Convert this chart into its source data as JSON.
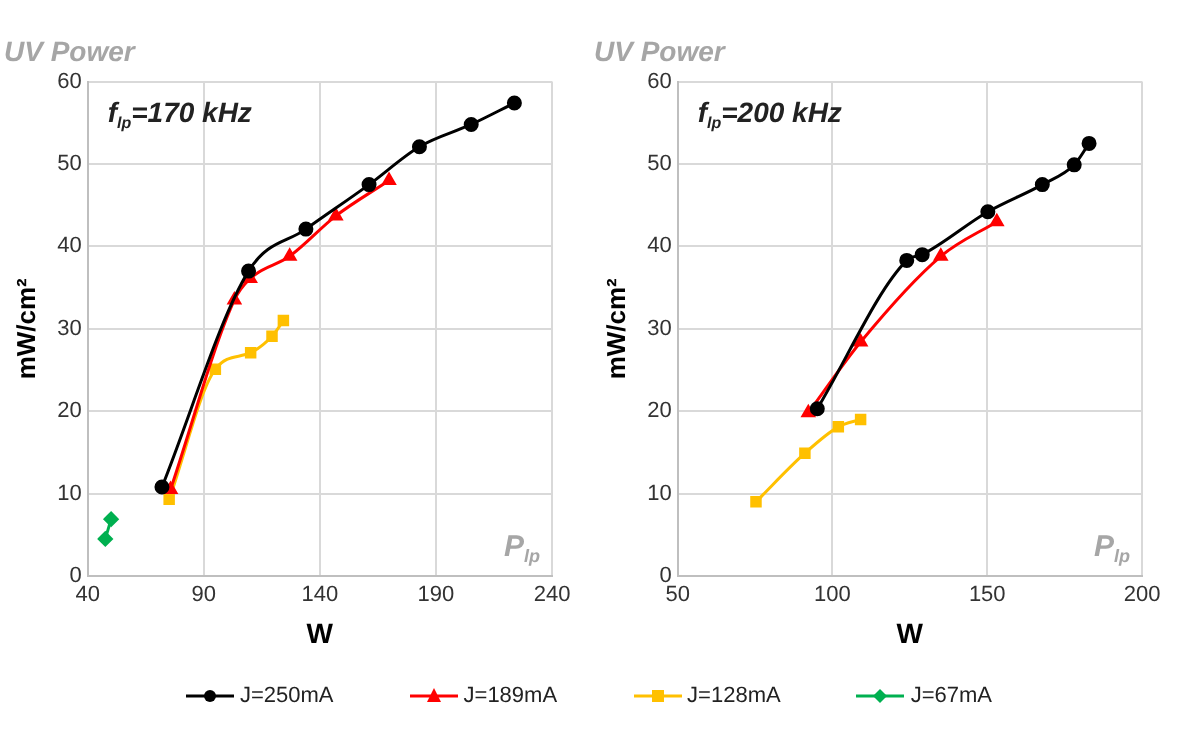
{
  "chart_data": [
    {
      "type": "line",
      "title": "UV Power",
      "xlabel": "W",
      "ylabel": "mW/cm²",
      "annotations": [
        "f$_{lp}$=170 kHz",
        "P$_{lp}$"
      ],
      "xlim": [
        40,
        240
      ],
      "xticks": [
        40,
        90,
        140,
        190,
        240
      ],
      "ylim": [
        0,
        60
      ],
      "yticks": [
        0,
        10,
        20,
        30,
        40,
        50,
        60
      ],
      "grid": true,
      "legend": "bottom",
      "line_style": "solid",
      "series": [
        {
          "name": "J=250mA",
          "color": "#000000",
          "marker": "circle",
          "x": [
            72,
            109.3,
            134,
            161.2,
            182.9,
            205.2,
            223.8
          ],
          "values": [
            10.8,
            37.0,
            42.1,
            47.5,
            52.1,
            54.8,
            57.4
          ]
        },
        {
          "name": "J=189mA",
          "color": "#ff0000",
          "marker": "triangle",
          "x": [
            75.7,
            103.2,
            110,
            127,
            146.9,
            169.8
          ],
          "values": [
            10.5,
            33.5,
            36.1,
            38.8,
            43.7,
            48.0
          ]
        },
        {
          "name": "J=128mA",
          "color": "#ffc000",
          "marker": "square",
          "x": [
            75.1,
            95,
            110.2,
            119.4,
            124.3
          ],
          "values": [
            9.3,
            25.1,
            27.1,
            29.1,
            31.0
          ]
        },
        {
          "name": "J=67mA",
          "color": "#00b050",
          "marker": "diamond",
          "x": [
            47.6,
            50.1
          ],
          "values": [
            4.5,
            6.9
          ]
        }
      ]
    },
    {
      "type": "line",
      "title": "UV Power",
      "xlabel": "W",
      "ylabel": "mW/cm²",
      "annotations": [
        "f$_{lp}$=200 kHz",
        "P$_{lp}$"
      ],
      "xlim": [
        50,
        200
      ],
      "xticks": [
        50,
        100,
        150,
        200
      ],
      "ylim": [
        0,
        60
      ],
      "yticks": [
        0,
        10,
        20,
        30,
        40,
        50,
        60
      ],
      "grid": true,
      "legend": "bottom",
      "line_style": "solid",
      "series": [
        {
          "color": "#000000",
          "marker": "circle",
          "x": [
            95.1,
            124,
            129,
            150.2,
            167.8,
            178.1,
            182.9
          ],
          "values": [
            20.3,
            38.3,
            39.0,
            44.2,
            47.5,
            49.9,
            52.5
          ]
        },
        {
          "color": "#ff0000",
          "marker": "triangle",
          "x": [
            92.2,
            109.1,
            135,
            153.1
          ],
          "values": [
            19.8,
            28.4,
            38.8,
            43.0
          ]
        },
        {
          "color": "#ffc000",
          "marker": "square",
          "x": [
            75.3,
            91.1,
            101.9,
            109.1
          ],
          "values": [
            9.0,
            14.9,
            18.1,
            19.0
          ]
        }
      ]
    }
  ]
}
